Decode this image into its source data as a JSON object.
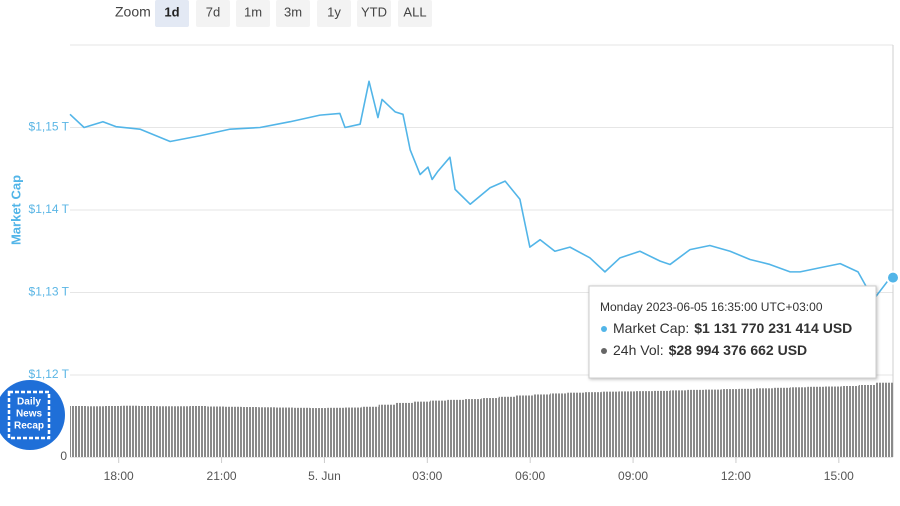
{
  "zoom": {
    "label": "Zoom",
    "buttons": [
      "1d",
      "7d",
      "1m",
      "3m",
      "1y",
      "YTD",
      "ALL"
    ],
    "selected": "1d"
  },
  "watermark": [
    "Daily",
    "News",
    "Recap"
  ],
  "chart_data": {
    "type": "line",
    "ylabel": "Market Cap",
    "ylim": [
      1.12,
      1.16
    ],
    "yticks": [
      {
        "value": 1.15,
        "label": "$1,15 T"
      },
      {
        "value": 1.14,
        "label": "$1,14 T"
      },
      {
        "value": 1.13,
        "label": "$1,13 T"
      },
      {
        "value": 1.12,
        "label": "$1,12 T"
      }
    ],
    "y2lim": [
      0,
      32
    ],
    "y2ticks": [
      0
    ],
    "xlim": [
      16.58,
      40.58
    ],
    "xticks": [
      {
        "value": 18,
        "label": "18:00"
      },
      {
        "value": 21,
        "label": "21:00"
      },
      {
        "value": 24,
        "label": "5. Jun"
      },
      {
        "value": 27,
        "label": "03:00"
      },
      {
        "value": 30,
        "label": "06:00"
      },
      {
        "value": 33,
        "label": "09:00"
      },
      {
        "value": 36,
        "label": "12:00"
      },
      {
        "value": 39,
        "label": "15:00"
      }
    ],
    "grid": true,
    "series": [
      {
        "type": "line",
        "color": "#52b5e8",
        "x": [
          16.58,
          16.99,
          17.54,
          17.92,
          18.62,
          19.5,
          20.37,
          21.25,
          22.12,
          23.0,
          23.87,
          24.45,
          24.6,
          25.04,
          25.3,
          25.56,
          25.68,
          26.06,
          26.29,
          26.5,
          26.79,
          27.02,
          27.14,
          27.31,
          27.66,
          27.81,
          28.25,
          28.83,
          29.27,
          29.7,
          29.99,
          30.29,
          30.72,
          31.16,
          31.74,
          32.18,
          32.62,
          33.2,
          33.79,
          34.08,
          34.66,
          35.24,
          35.83,
          36.41,
          36.99,
          37.58,
          37.87,
          38.45,
          39.04,
          39.56,
          39.91,
          40.06,
          40.41,
          40.58
        ],
        "values": [
          1.1516,
          1.15,
          1.1507,
          1.1501,
          1.1498,
          1.1483,
          1.149,
          1.1498,
          1.15,
          1.1507,
          1.1515,
          1.1517,
          1.15,
          1.1504,
          1.1556,
          1.1512,
          1.1534,
          1.1519,
          1.1516,
          1.1473,
          1.1443,
          1.1452,
          1.1437,
          1.1447,
          1.1464,
          1.1425,
          1.1407,
          1.1427,
          1.1435,
          1.1413,
          1.1355,
          1.1364,
          1.135,
          1.1355,
          1.1342,
          1.1325,
          1.1342,
          1.135,
          1.1338,
          1.1334,
          1.1352,
          1.1357,
          1.135,
          1.134,
          1.1334,
          1.1325,
          1.1325,
          1.133,
          1.1335,
          1.1325,
          1.1299,
          1.1294,
          1.1313,
          1.1318
        ]
      },
      {
        "type": "bar",
        "axis": "y2",
        "color": "#8a8a8a",
        "x": [
          17.08,
          17.58,
          18.08,
          18.58,
          19.08,
          19.58,
          20.08,
          20.58,
          21.08,
          21.58,
          22.08,
          22.58,
          23.08,
          23.58,
          24.08,
          24.58,
          25.08,
          25.58,
          26.08,
          26.58,
          27.08,
          27.58,
          28.08,
          28.58,
          29.08,
          29.58,
          30.08,
          30.58,
          31.08,
          31.58,
          32.08,
          32.58,
          33.08,
          33.58,
          34.08,
          34.58,
          35.08,
          35.58,
          36.08,
          36.58,
          37.08,
          37.58,
          38.08,
          38.58,
          39.08,
          39.58,
          40.08,
          40.58
        ],
        "values": [
          19.9,
          19.8,
          19.9,
          20.0,
          19.9,
          19.8,
          19.8,
          19.9,
          19.7,
          19.6,
          19.5,
          19.4,
          19.3,
          19.2,
          19.1,
          19.2,
          19.3,
          19.6,
          20.4,
          21.1,
          21.6,
          22.0,
          22.3,
          22.6,
          23.0,
          23.5,
          24.0,
          24.4,
          24.8,
          25.1,
          25.3,
          25.5,
          25.6,
          25.7,
          25.8,
          26.0,
          26.2,
          26.3,
          26.5,
          26.6,
          26.8,
          27.0,
          27.2,
          27.4,
          27.5,
          27.7,
          28.1,
          28.99
        ]
      }
    ],
    "tooltip": {
      "time": "Monday 2023-06-05 16:35:00 UTC+03:00",
      "rows": [
        {
          "label": "Market Cap:",
          "value": "$1 131 770 231 414 USD",
          "color": "#52b5e8"
        },
        {
          "label": "24h Vol:",
          "value": "$28 994 376 662 USD",
          "color": "#666666"
        }
      ]
    }
  }
}
